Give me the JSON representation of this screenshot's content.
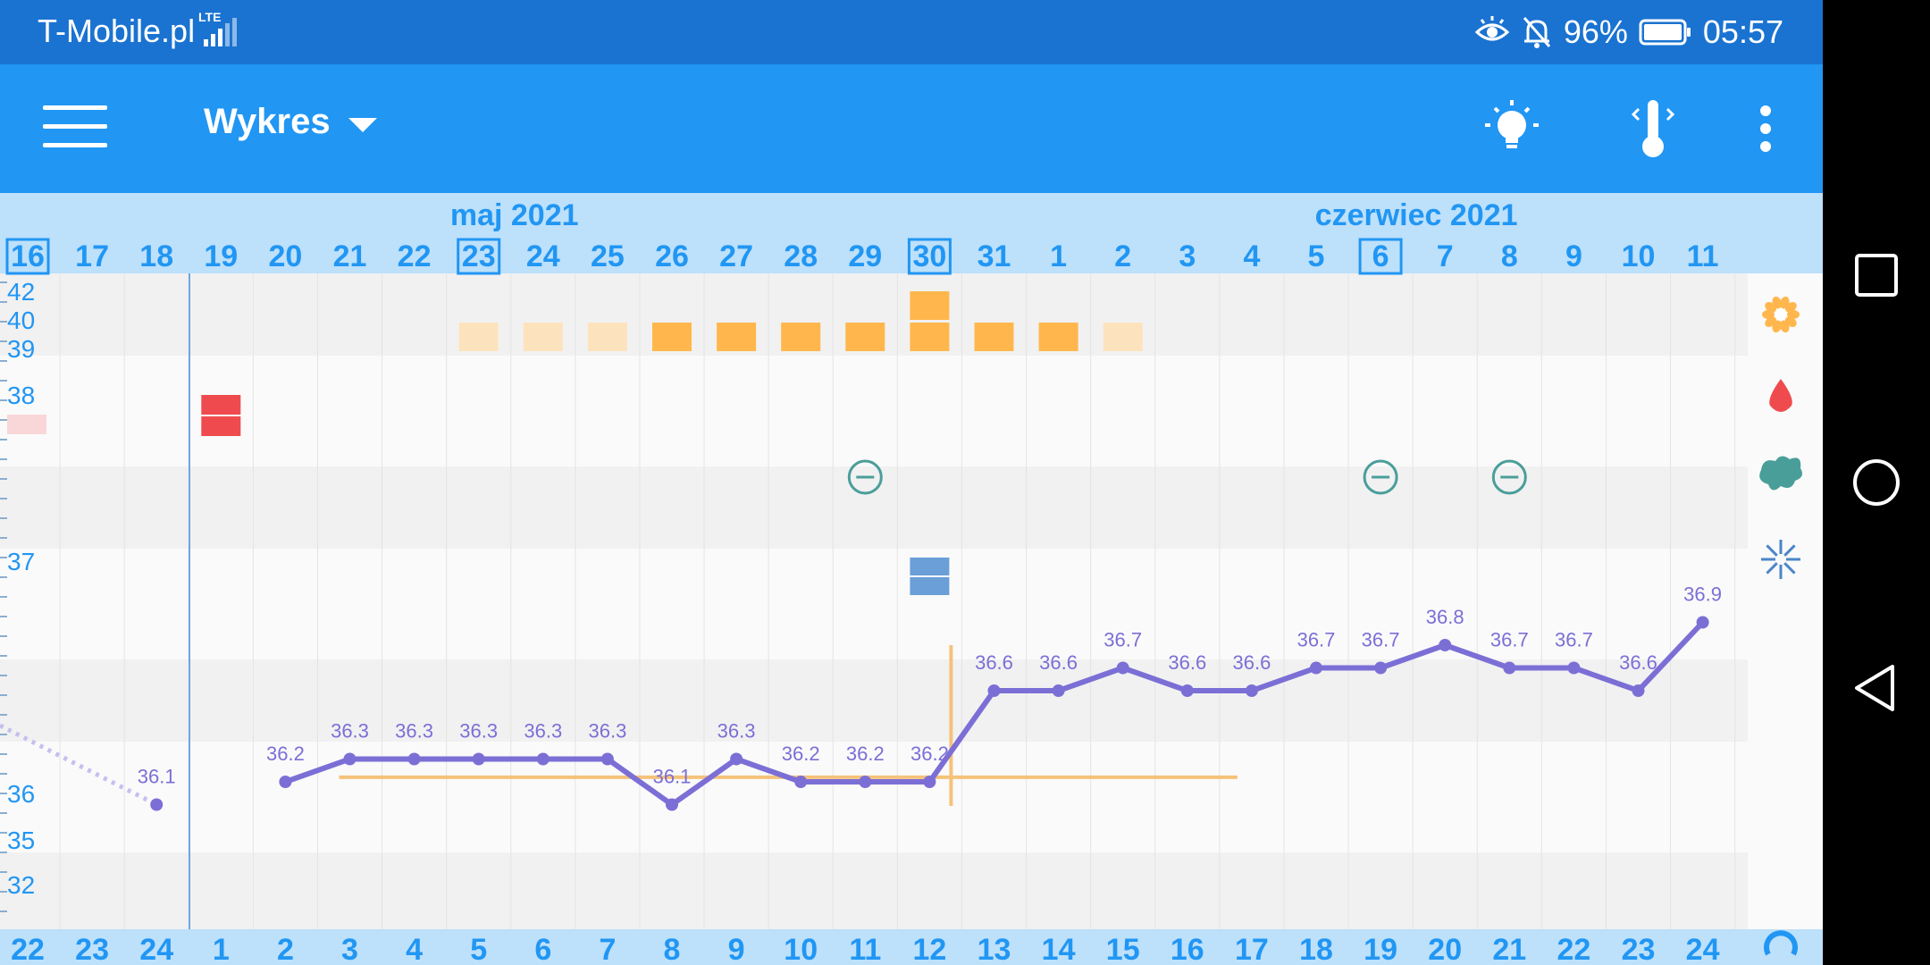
{
  "status_bar": {
    "carrier": "T-Mobile.pl",
    "network": "LTE",
    "battery": "96%",
    "time": "05:57",
    "icons": [
      "eye-icon",
      "bell-off-icon",
      "battery-icon"
    ]
  },
  "app_bar": {
    "title": "Wykres",
    "icons": [
      "menu-icon",
      "caret-down-icon",
      "lightbulb-icon",
      "thermometer-icon",
      "more-vert-icon"
    ]
  },
  "header": {
    "months": [
      {
        "label": "maj 2021",
        "day_index": 7
      },
      {
        "label": "czerwiec 2021",
        "day_index": 21
      }
    ],
    "dates": [
      "16",
      "17",
      "18",
      "19",
      "20",
      "21",
      "22",
      "23",
      "24",
      "25",
      "26",
      "27",
      "28",
      "29",
      "30",
      "31",
      "1",
      "2",
      "3",
      "4",
      "5",
      "6",
      "7",
      "8",
      "9",
      "10",
      "11"
    ],
    "boxed_dates": [
      "16",
      "23",
      "30",
      "6"
    ]
  },
  "footer": {
    "cycle_days": [
      "22",
      "23",
      "24",
      "1",
      "2",
      "3",
      "4",
      "5",
      "6",
      "7",
      "8",
      "9",
      "10",
      "11",
      "12",
      "13",
      "14",
      "15",
      "16",
      "17",
      "18",
      "19",
      "20",
      "21",
      "22",
      "23",
      "24"
    ]
  },
  "y_axis_labels": [
    "42",
    "40",
    "39",
    "38",
    "37",
    "36",
    "35",
    "32"
  ],
  "side_icons": [
    "flower-icon",
    "drop-icon",
    "splash-icon",
    "sparkle-icon",
    "cycle-icon"
  ],
  "chart_data": {
    "type": "line",
    "series": [
      {
        "values": [
          null,
          null,
          36.1,
          null,
          36.2,
          36.3,
          36.3,
          36.3,
          36.3,
          36.3,
          36.1,
          36.3,
          36.2,
          36.2,
          36.2,
          36.6,
          36.6,
          36.7,
          36.6,
          36.6,
          36.7,
          36.7,
          36.8,
          36.7,
          36.7,
          36.6,
          36.9
        ],
        "labels": [
          "",
          "",
          "36.1",
          "",
          "36.2",
          "36.3",
          "36.3",
          "36.3",
          "36.3",
          "36.3",
          "36.1",
          "36.3",
          "36.2",
          "36.2",
          "36.2",
          "36.6",
          "36.6",
          "36.7",
          "36.6",
          "36.6",
          "36.7",
          "36.7",
          "36.8",
          "36.7",
          "36.7",
          "36.6",
          "36.9"
        ]
      }
    ],
    "coverline": {
      "value": 36.22,
      "from_day": 5,
      "to_day": 19
    },
    "ovulation_day_index": 14,
    "cervical_mucus": [
      0,
      0,
      0,
      0,
      0,
      0,
      0,
      1,
      1,
      1,
      2,
      2,
      2,
      2,
      3,
      2,
      2,
      1,
      0,
      0,
      0,
      0,
      0,
      0,
      0,
      0,
      0
    ],
    "bleeding_days": [
      3
    ],
    "minus_marks": [
      13,
      21,
      23
    ],
    "blue_marker_day": 14,
    "colors": {
      "line": "#7b6fd6",
      "coverline": "#f5c27a",
      "accent": "#2196f3",
      "bleeding": "#ef4b4f",
      "mucus_light": "#fde3bd",
      "mucus_strong": "#ffb74d",
      "marker_blue": "#6a9fd8",
      "minus": "#4a9e9a"
    }
  }
}
